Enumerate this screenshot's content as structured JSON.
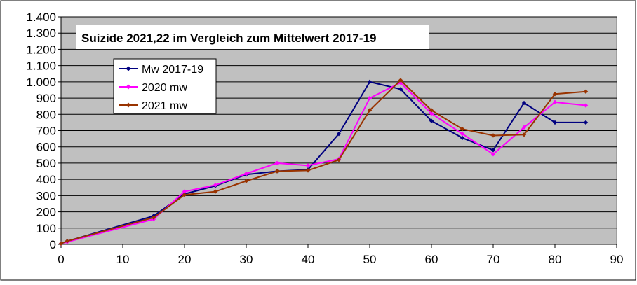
{
  "chart_data": {
    "type": "line",
    "title": "Suizide 2021,22 im Vergleich zum Mittelwert 2017-19",
    "xlabel": "",
    "ylabel": "",
    "xlim": [
      0,
      90
    ],
    "ylim": [
      0,
      1400
    ],
    "x_ticks": [
      0,
      10,
      20,
      30,
      40,
      50,
      60,
      70,
      80,
      90
    ],
    "x_tick_labels": [
      "0",
      "10",
      "20",
      "30",
      "40",
      "50",
      "60",
      "70",
      "80",
      "90"
    ],
    "y_ticks": [
      0,
      100,
      200,
      300,
      400,
      500,
      600,
      700,
      800,
      900,
      1000,
      1100,
      1200,
      1300,
      1400
    ],
    "y_tick_labels": [
      "0",
      "100",
      "200",
      "300",
      "400",
      "500",
      "600",
      "700",
      "800",
      "900",
      "1.000",
      "1.100",
      "1.200",
      "1.300",
      "1.400"
    ],
    "grid": "horizontal",
    "legend_position": "top-left",
    "series": [
      {
        "name": "Mw 2017-19",
        "color": "#000080",
        "points": [
          [
            0,
            5
          ],
          [
            1,
            20
          ],
          [
            15,
            175
          ],
          [
            20,
            310
          ],
          [
            25,
            360
          ],
          [
            30,
            430
          ],
          [
            35,
            450
          ],
          [
            40,
            460
          ],
          [
            45,
            680
          ],
          [
            50,
            1000
          ],
          [
            55,
            955
          ],
          [
            60,
            760
          ],
          [
            65,
            655
          ],
          [
            70,
            580
          ],
          [
            75,
            870
          ],
          [
            80,
            750
          ],
          [
            85,
            750
          ]
        ]
      },
      {
        "name": "2020 mw",
        "color": "#ff00ff",
        "points": [
          [
            0,
            5
          ],
          [
            1,
            15
          ],
          [
            15,
            155
          ],
          [
            20,
            325
          ],
          [
            25,
            365
          ],
          [
            30,
            435
          ],
          [
            35,
            500
          ],
          [
            40,
            485
          ],
          [
            45,
            525
          ],
          [
            50,
            900
          ],
          [
            55,
            995
          ],
          [
            60,
            805
          ],
          [
            65,
            680
          ],
          [
            70,
            555
          ],
          [
            75,
            720
          ],
          [
            80,
            875
          ],
          [
            85,
            855
          ]
        ]
      },
      {
        "name": "2021 mw",
        "color": "#993300",
        "points": [
          [
            0,
            5
          ],
          [
            1,
            20
          ],
          [
            15,
            165
          ],
          [
            20,
            305
          ],
          [
            25,
            325
          ],
          [
            30,
            390
          ],
          [
            35,
            450
          ],
          [
            40,
            455
          ],
          [
            45,
            520
          ],
          [
            50,
            825
          ],
          [
            55,
            1010
          ],
          [
            60,
            825
          ],
          [
            65,
            710
          ],
          [
            70,
            670
          ],
          [
            75,
            675
          ],
          [
            80,
            925
          ],
          [
            85,
            940
          ]
        ]
      }
    ]
  },
  "colors": {
    "plot_background": "#c0c0c0",
    "grid": "#000000",
    "frame": "#000000"
  }
}
